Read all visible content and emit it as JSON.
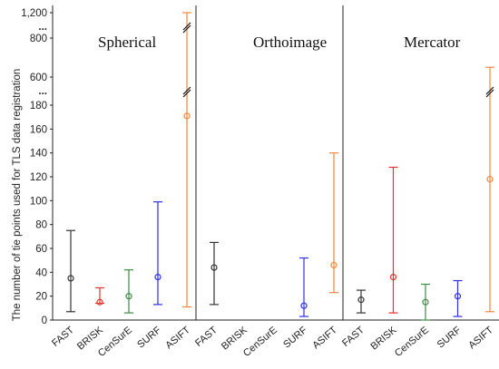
{
  "chart_data": {
    "type": "error-bar",
    "ylabel": "The number of tie points used for TLS data registration",
    "y_ticks": [
      "0",
      "20",
      "40",
      "60",
      "80",
      "100",
      "120",
      "140",
      "160",
      "180",
      "600",
      "800",
      "1,200"
    ],
    "axis_breaks": [
      "...",
      "..."
    ],
    "categories": [
      "FAST",
      "BRISK",
      "CenSurE",
      "SURF",
      "ASIFT"
    ],
    "panels": [
      {
        "title": "Spherical",
        "points": [
          {
            "category": "FAST",
            "min": 7,
            "mean": 35,
            "max": 75
          },
          {
            "category": "BRISK",
            "min": 14,
            "mean": 15,
            "max": 27
          },
          {
            "category": "CenSurE",
            "min": 6,
            "mean": 20,
            "max": 42
          },
          {
            "category": "SURF",
            "min": 13,
            "mean": 36,
            "max": 99
          },
          {
            "category": "ASIFT",
            "min": 11,
            "mean": 171,
            "max": 1200
          }
        ]
      },
      {
        "title": "Orthoimage",
        "points": [
          {
            "category": "FAST",
            "min": 13,
            "mean": 44,
            "max": 65
          },
          {
            "category": "BRISK",
            "min": null,
            "mean": null,
            "max": null
          },
          {
            "category": "CenSurE",
            "min": null,
            "mean": null,
            "max": null
          },
          {
            "category": "SURF",
            "min": 3,
            "mean": 12,
            "max": 52
          },
          {
            "category": "ASIFT",
            "min": 23,
            "mean": 46,
            "max": 140
          }
        ]
      },
      {
        "title": "Mercator",
        "points": [
          {
            "category": "FAST",
            "min": 6,
            "mean": 17,
            "max": 25
          },
          {
            "category": "BRISK",
            "min": 6,
            "mean": 36,
            "max": 128
          },
          {
            "category": "CenSurE",
            "min": 0,
            "mean": 15,
            "max": 30
          },
          {
            "category": "SURF",
            "min": 3,
            "mean": 20,
            "max": 33
          },
          {
            "category": "ASIFT",
            "min": 7,
            "mean": 118,
            "max": 650
          }
        ]
      }
    ],
    "colors": {
      "FAST": "#333333",
      "BRISK": "#e8312a",
      "CenSurE": "#3e8a46",
      "SURF": "#2f2ff0",
      "ASIFT": "#f5873c"
    },
    "grid": false,
    "legend": "none"
  }
}
